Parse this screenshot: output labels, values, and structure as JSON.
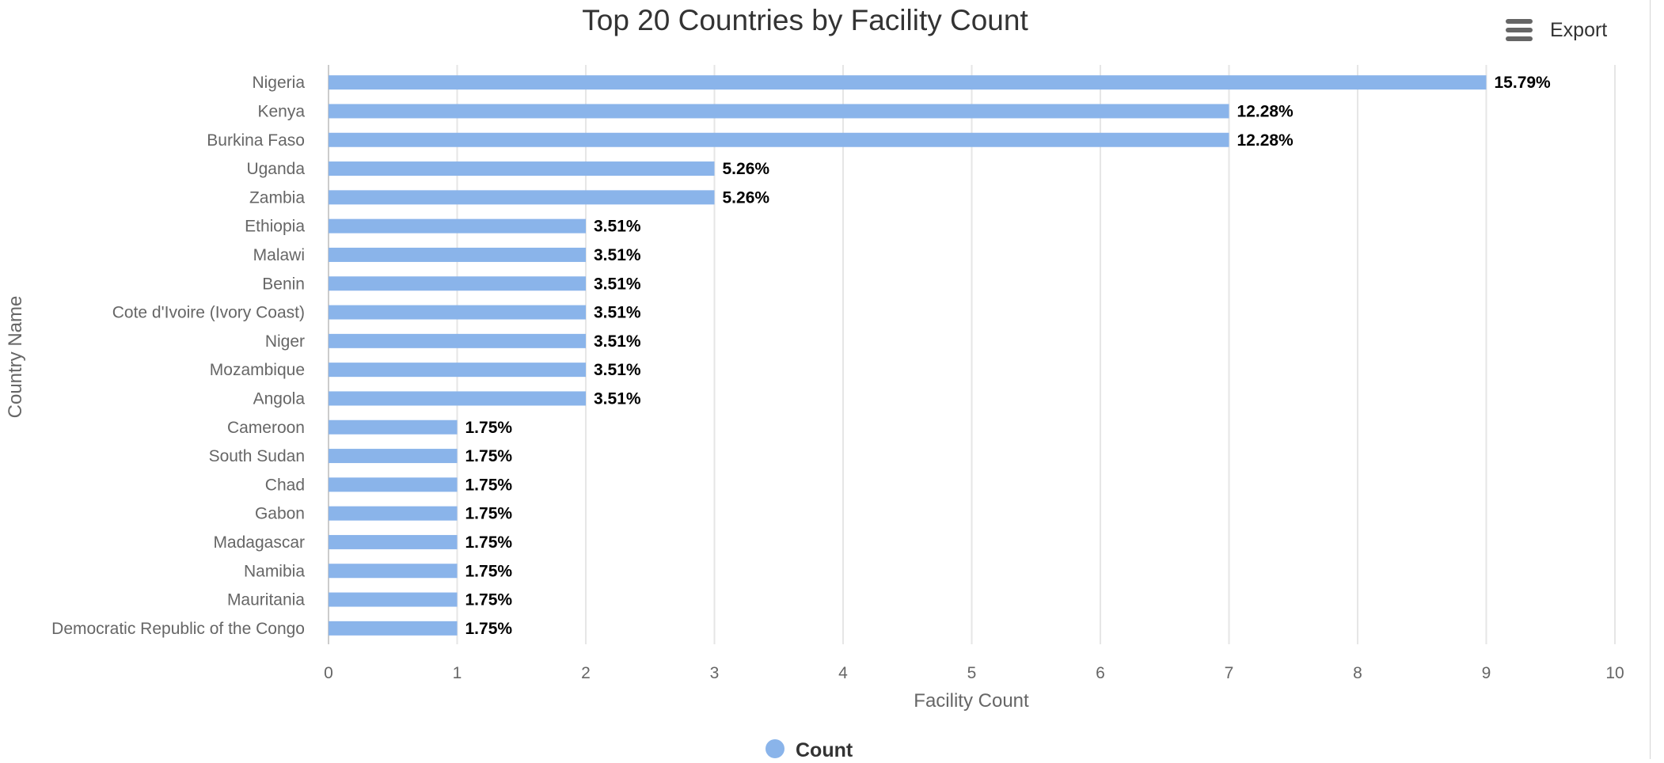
{
  "export": {
    "label": "Export",
    "icon": "menu-icon"
  },
  "chart_data": {
    "type": "bar",
    "orientation": "horizontal",
    "title": "Top 20 Countries by Facility Count",
    "xlabel": "Facility Count",
    "ylabel": "Country Name",
    "xlim": [
      0,
      10
    ],
    "x_ticks": [
      "0",
      "1",
      "2",
      "3",
      "4",
      "5",
      "6",
      "7",
      "8",
      "9",
      "10"
    ],
    "grid": true,
    "legend_position": "bottom-center",
    "bar_color": "#8ab4ea",
    "categories": [
      "Nigeria",
      "Kenya",
      "Burkina Faso",
      "Uganda",
      "Zambia",
      "Ethiopia",
      "Malawi",
      "Benin",
      "Cote d'Ivoire (Ivory Coast)",
      "Niger",
      "Mozambique",
      "Angola",
      "Cameroon",
      "South Sudan",
      "Chad",
      "Gabon",
      "Madagascar",
      "Namibia",
      "Mauritania",
      "Democratic Republic of the Congo"
    ],
    "series": [
      {
        "name": "Count",
        "values": [
          9,
          7,
          7,
          3,
          3,
          2,
          2,
          2,
          2,
          2,
          2,
          2,
          1,
          1,
          1,
          1,
          1,
          1,
          1,
          1
        ],
        "data_labels": [
          "15.79%",
          "12.28%",
          "12.28%",
          "5.26%",
          "5.26%",
          "3.51%",
          "3.51%",
          "3.51%",
          "3.51%",
          "3.51%",
          "3.51%",
          "3.51%",
          "1.75%",
          "1.75%",
          "1.75%",
          "1.75%",
          "1.75%",
          "1.75%",
          "1.75%",
          "1.75%"
        ]
      }
    ]
  }
}
